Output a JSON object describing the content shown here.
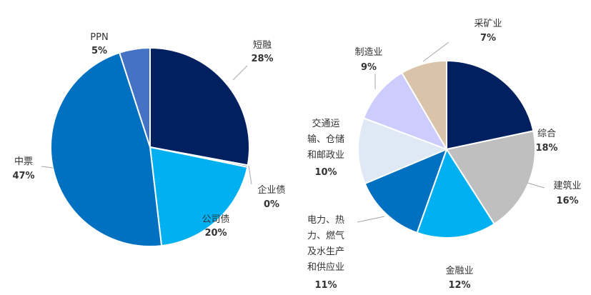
{
  "chart_data": [
    {
      "type": "pie",
      "title": "",
      "slices": [
        {
          "label": "短融",
          "value": 28,
          "display": "28%",
          "color": "#002060"
        },
        {
          "label": "企业债",
          "value": 0.3,
          "display": "0%",
          "color": "#1f4e79"
        },
        {
          "label": "公司债",
          "value": 20,
          "display": "20%",
          "color": "#00b0f0"
        },
        {
          "label": "中票",
          "value": 47,
          "display": "47%",
          "color": "#0070c0"
        },
        {
          "label": "PPN",
          "value": 5,
          "display": "5%",
          "color": "#4472c4"
        }
      ]
    },
    {
      "type": "pie",
      "title": "",
      "slices": [
        {
          "label": "综合",
          "value": 18,
          "display": "18%",
          "color": "#002060"
        },
        {
          "label": "建筑业",
          "value": 16,
          "display": "16%",
          "color": "#bfbfbf"
        },
        {
          "label": "金融业",
          "value": 12,
          "display": "12%",
          "color": "#00b0f0"
        },
        {
          "label": "电力、热力、燃气及水生产和供应业",
          "value": 11,
          "display": "11%",
          "color": "#0070c0"
        },
        {
          "label": "交通运输、仓储和邮政业",
          "value": 10,
          "display": "10%",
          "color": "#dee9f5"
        },
        {
          "label": "制造业",
          "value": 9,
          "display": "9%",
          "color": "#ccccff"
        },
        {
          "label": "采矿业",
          "value": 7,
          "display": "7%",
          "color": "#d9c3a9"
        }
      ]
    }
  ]
}
